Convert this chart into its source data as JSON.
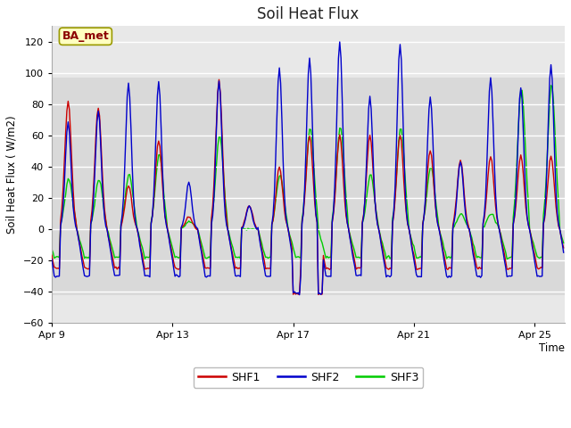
{
  "title": "Soil Heat Flux",
  "ylabel": "Soil Heat Flux ( W/m2)",
  "xlabel": "Time",
  "ylim": [
    -60,
    130
  ],
  "yticks": [
    -60,
    -40,
    -20,
    0,
    20,
    40,
    60,
    80,
    100,
    120
  ],
  "xlim_start": 0,
  "xlim_end": 408,
  "xtick_positions": [
    0,
    96,
    192,
    288,
    384
  ],
  "xtick_labels": [
    "Apr 9",
    "Apr 13",
    "Apr 17",
    "Apr 21",
    "Apr 25"
  ],
  "shf1_color": "#cc0000",
  "shf2_color": "#0000cc",
  "shf3_color": "#00cc00",
  "legend_label1": "SHF1",
  "legend_label2": "SHF2",
  "legend_label3": "SHF3",
  "fig_bg_color": "#ffffff",
  "plot_bg_color": "#e8e8e8",
  "band_color": "#d0d0d0",
  "annotation_text": "BA_met",
  "annotation_color": "#8b0000",
  "annotation_bg": "#ffffc0",
  "annotation_edge": "#999900",
  "grid_color": "#ffffff",
  "title_fontsize": 12,
  "band_low": -42,
  "band_high": 97,
  "day_peaks_shf1": [
    82,
    78,
    28,
    57,
    8,
    95,
    15,
    40,
    60,
    60,
    60,
    60,
    51,
    44,
    47,
    47,
    47
  ],
  "day_peaks_shf2": [
    68,
    76,
    93,
    94,
    30,
    95,
    15,
    103,
    109,
    120,
    85,
    119,
    85,
    44,
    97,
    91,
    105
  ],
  "day_peaks_shf3": [
    32,
    32,
    35,
    48,
    5,
    60,
    0,
    35,
    65,
    65,
    35,
    65,
    40,
    10,
    10,
    90,
    93
  ],
  "night_shf1": -25,
  "night_shf2": -30,
  "night_shf3": -18,
  "deep_trough_day": 8,
  "deep_trough_val1": -41,
  "deep_trough_val2": -41
}
